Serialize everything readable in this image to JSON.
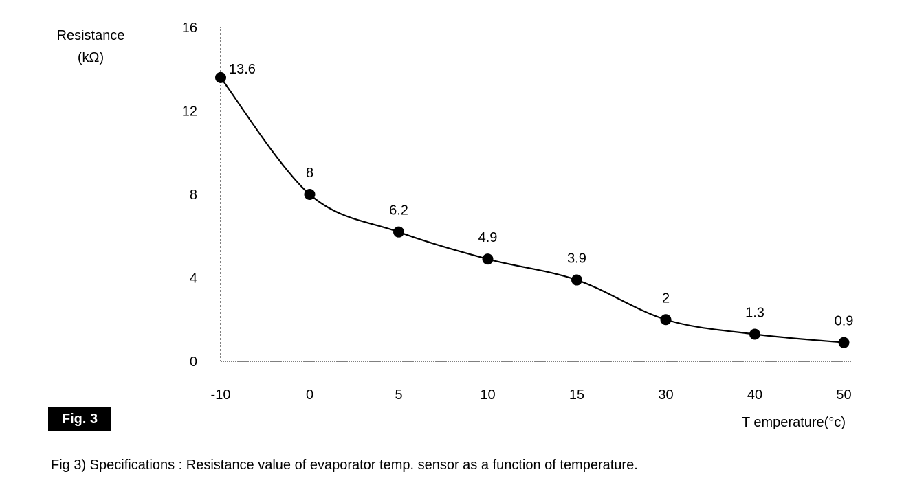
{
  "chart_data": {
    "type": "line",
    "categories": [
      "-10",
      "0",
      "5",
      "10",
      "15",
      "30",
      "40",
      "50"
    ],
    "values": [
      13.6,
      8,
      6.2,
      4.9,
      3.9,
      2,
      1.3,
      0.9
    ],
    "data_labels": [
      "13.6",
      "8",
      "6.2",
      "4.9",
      "3.9",
      "2",
      "1.3",
      "0.9"
    ],
    "ylabel": [
      "Resistance",
      "(kΩ)"
    ],
    "xlabel": "T emperature(°c)",
    "yticks": [
      0,
      4,
      8,
      12,
      16
    ],
    "ylim": [
      0,
      16
    ],
    "grid": false,
    "marker": "filled-circle",
    "line_style": "smooth",
    "colors": {
      "line": "#000000",
      "marker": "#000000"
    }
  },
  "figure": {
    "badge": "Fig. 3",
    "caption": "Fig 3) Specifications : Resistance value of evaporator temp. sensor as a function of temperature."
  }
}
